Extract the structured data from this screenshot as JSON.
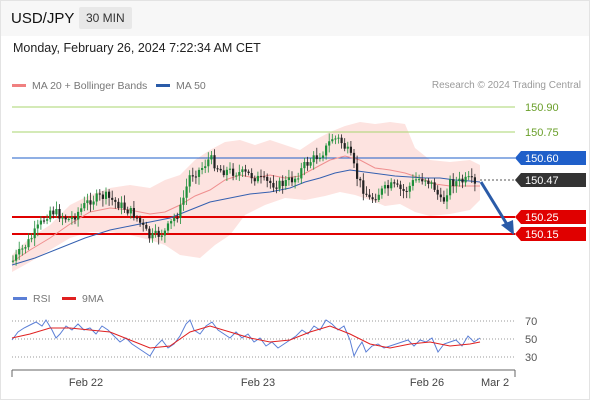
{
  "header": {
    "symbol": "USD/JPY",
    "timeframe": "30 MIN",
    "datetime": "Monday, February 26, 2024 7:22:34 AM CET"
  },
  "legend": {
    "items": [
      {
        "label": "MA 20 + Bollinger Bands",
        "color": "#f08080"
      },
      {
        "label": "MA 50",
        "color": "#2a5ba8"
      }
    ],
    "source": "Research © 2024 Trading Central"
  },
  "levels": [
    {
      "label": "150.90",
      "color": "#8bc34a",
      "style": "text"
    },
    {
      "label": "150.75",
      "color": "#8bc34a",
      "style": "text"
    },
    {
      "label": "150.60",
      "color": "#1f5fc9",
      "style": "box"
    },
    {
      "label": "150.47",
      "color": "#333333",
      "style": "box"
    },
    {
      "label": "150.25",
      "color": "#e00000",
      "style": "box"
    },
    {
      "label": "150.15",
      "color": "#e00000",
      "style": "box"
    }
  ],
  "rsi": {
    "legend": [
      {
        "label": "RSI",
        "color": "#5b7fd6"
      },
      {
        "label": "9MA",
        "color": "#e02020"
      }
    ],
    "levels": [
      "70",
      "50",
      "30"
    ]
  },
  "xaxis": {
    "labels": [
      "Feb 22",
      "Feb 23",
      "Feb 26",
      "Mar 2"
    ]
  }
}
